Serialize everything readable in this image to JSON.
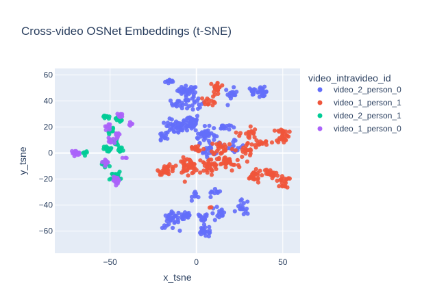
{
  "chart_data": {
    "type": "scatter",
    "title": "Cross-video OSNet Embeddings (t-SNE)",
    "xlabel": "x_tsne",
    "ylabel": "y_tsne",
    "xlim": [
      -82,
      60
    ],
    "ylim": [
      -77,
      65
    ],
    "xticks": [
      -50,
      0,
      50
    ],
    "yticks": [
      -60,
      -40,
      -20,
      0,
      20,
      40,
      60
    ],
    "grid": true,
    "legend_title": "video_intravideo_id",
    "legend_position": "right",
    "plot_bg": "#e5ecf6",
    "series": [
      {
        "name": "video_2_person_0",
        "color": "#636efa",
        "clusters": [
          {
            "c": [
              -15,
              55
            ],
            "s": [
              2.5,
              1.5
            ],
            "n": 12
          },
          {
            "c": [
              -5,
              48
            ],
            "s": [
              5,
              3
            ],
            "n": 30
          },
          {
            "c": [
              -10,
              38
            ],
            "s": [
              4,
              3
            ],
            "n": 16
          },
          {
            "c": [
              -2,
              38
            ],
            "s": [
              6,
              5
            ],
            "n": 20
          },
          {
            "c": [
              -20,
              12
            ],
            "s": [
              2.5,
              3
            ],
            "n": 12
          },
          {
            "c": [
              -12,
              20
            ],
            "s": [
              5,
              5
            ],
            "n": 40
          },
          {
            "c": [
              -3,
              24
            ],
            "s": [
              4,
              5
            ],
            "n": 40
          },
          {
            "c": [
              5,
              14
            ],
            "s": [
              5,
              5
            ],
            "n": 40
          },
          {
            "c": [
              15,
              20
            ],
            "s": [
              4,
              2
            ],
            "n": 16
          },
          {
            "c": [
              8,
              2
            ],
            "s": [
              5,
              4
            ],
            "n": 20
          },
          {
            "c": [
              23,
              5
            ],
            "s": [
              4,
              5
            ],
            "n": 14
          },
          {
            "c": [
              20,
              45
            ],
            "s": [
              3,
              4
            ],
            "n": 14
          },
          {
            "c": [
              33,
              48
            ],
            "s": [
              2,
              2
            ],
            "n": 12
          },
          {
            "c": [
              38,
              47
            ],
            "s": [
              2.5,
              3
            ],
            "n": 22
          },
          {
            "c": [
              -15,
              -52
            ],
            "s": [
              4,
              5
            ],
            "n": 28
          },
          {
            "c": [
              -7,
              -48
            ],
            "s": [
              4,
              4
            ],
            "n": 24
          },
          {
            "c": [
              5,
              -60
            ],
            "s": [
              4,
              4
            ],
            "n": 24
          },
          {
            "c": [
              3,
              -50
            ],
            "s": [
              3,
              3
            ],
            "n": 12
          },
          {
            "c": [
              13,
              -47
            ],
            "s": [
              4,
              5
            ],
            "n": 16
          },
          {
            "c": [
              27,
              -42
            ],
            "s": [
              3,
              5
            ],
            "n": 16
          },
          {
            "c": [
              10,
              -32
            ],
            "s": [
              4,
              3
            ],
            "n": 10
          },
          {
            "c": [
              0,
              -32
            ],
            "s": [
              2,
              3
            ],
            "n": 8
          }
        ]
      },
      {
        "name": "video_1_person_1",
        "color": "#ef553b",
        "clusters": [
          {
            "c": [
              12,
              50
            ],
            "s": [
              2,
              5
            ],
            "n": 22
          },
          {
            "c": [
              7,
              40
            ],
            "s": [
              4,
              3
            ],
            "n": 14
          },
          {
            "c": [
              -17,
              -13
            ],
            "s": [
              4,
              3
            ],
            "n": 30
          },
          {
            "c": [
              -5,
              -10
            ],
            "s": [
              5,
              5
            ],
            "n": 45
          },
          {
            "c": [
              7,
              -10
            ],
            "s": [
              5,
              5
            ],
            "n": 30
          },
          {
            "c": [
              18,
              -8
            ],
            "s": [
              6,
              5
            ],
            "n": 30
          },
          {
            "c": [
              0,
              3
            ],
            "s": [
              4,
              3
            ],
            "n": 14
          },
          {
            "c": [
              15,
              4
            ],
            "s": [
              6,
              5
            ],
            "n": 26
          },
          {
            "c": [
              30,
              2
            ],
            "s": [
              5,
              5
            ],
            "n": 20
          },
          {
            "c": [
              30,
              15
            ],
            "s": [
              4,
              5
            ],
            "n": 18
          },
          {
            "c": [
              38,
              8
            ],
            "s": [
              4,
              2
            ],
            "n": 14
          },
          {
            "c": [
              50,
              14
            ],
            "s": [
              3,
              5
            ],
            "n": 30
          },
          {
            "c": [
              33,
              -18
            ],
            "s": [
              4,
              4
            ],
            "n": 24
          },
          {
            "c": [
              42,
              -16
            ],
            "s": [
              3,
              3
            ],
            "n": 20
          },
          {
            "c": [
              50,
              -22
            ],
            "s": [
              3,
              4
            ],
            "n": 20
          },
          {
            "c": [
              8,
              -42
            ],
            "s": [
              1,
              1
            ],
            "n": 2
          }
        ]
      },
      {
        "name": "video_2_person_1",
        "color": "#00cc96",
        "clusters": [
          {
            "c": [
              -52,
              28
            ],
            "s": [
              1.5,
              2
            ],
            "n": 10
          },
          {
            "c": [
              -45,
              26
            ],
            "s": [
              1.5,
              2
            ],
            "n": 12
          },
          {
            "c": [
              -50,
              17
            ],
            "s": [
              2,
              2
            ],
            "n": 12
          },
          {
            "c": [
              -47,
              8
            ],
            "s": [
              2,
              2.5
            ],
            "n": 16
          },
          {
            "c": [
              -51,
              3
            ],
            "s": [
              2,
              2
            ],
            "n": 18
          },
          {
            "c": [
              -44,
              2
            ],
            "s": [
              1.5,
              2
            ],
            "n": 12
          },
          {
            "c": [
              -53,
              -9
            ],
            "s": [
              2,
              2
            ],
            "n": 14
          },
          {
            "c": [
              -47,
              -18
            ],
            "s": [
              2.5,
              3
            ],
            "n": 30
          },
          {
            "c": [
              -64,
              0
            ],
            "s": [
              1.5,
              1.5
            ],
            "n": 6
          }
        ]
      },
      {
        "name": "video_1_person_0",
        "color": "#ab63fa",
        "clusters": [
          {
            "c": [
              -44,
              29
            ],
            "s": [
              1.5,
              1.5
            ],
            "n": 10
          },
          {
            "c": [
              -38,
              23
            ],
            "s": [
              1,
              1.5
            ],
            "n": 6
          },
          {
            "c": [
              -51,
              20
            ],
            "s": [
              1.5,
              2
            ],
            "n": 8
          },
          {
            "c": [
              -46,
              14
            ],
            "s": [
              1.5,
              2
            ],
            "n": 10
          },
          {
            "c": [
              -50,
              9
            ],
            "s": [
              2,
              2
            ],
            "n": 10
          },
          {
            "c": [
              -41,
              -4
            ],
            "s": [
              1,
              1
            ],
            "n": 3
          },
          {
            "c": [
              -53,
              -7
            ],
            "s": [
              2,
              2
            ],
            "n": 10
          },
          {
            "c": [
              -46,
              -21
            ],
            "s": [
              2,
              2
            ],
            "n": 20
          },
          {
            "c": [
              -70,
              0
            ],
            "s": [
              2,
              1.5
            ],
            "n": 22
          }
        ]
      }
    ]
  }
}
